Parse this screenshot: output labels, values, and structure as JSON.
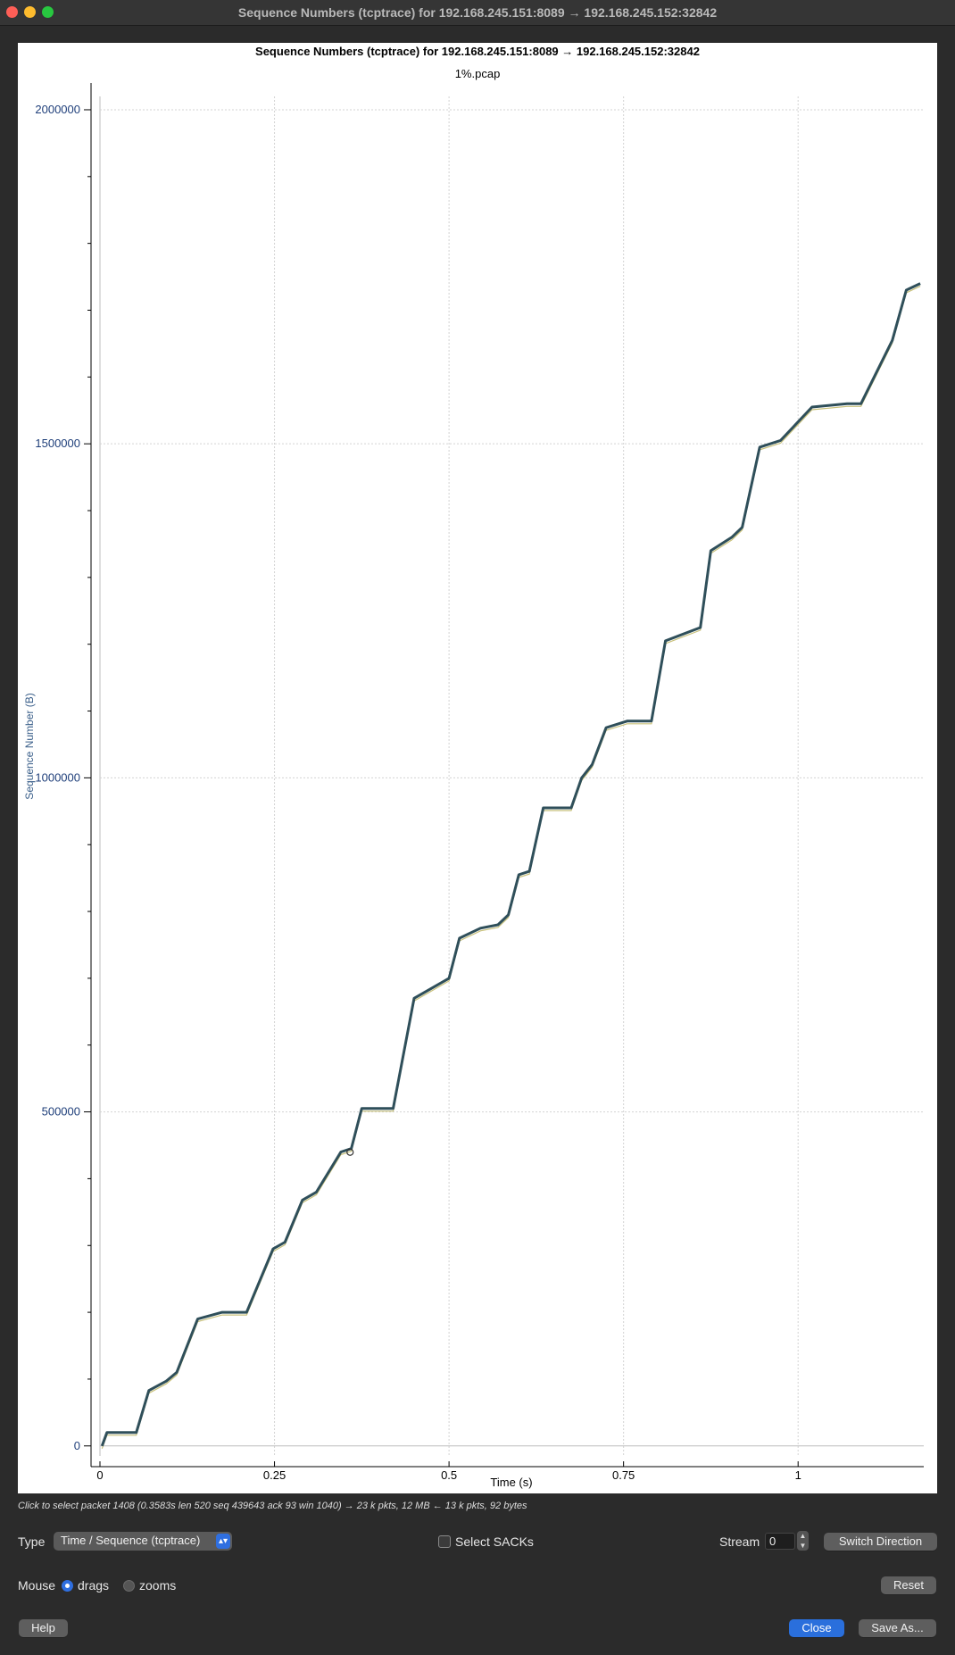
{
  "window": {
    "title": "Sequence Numbers (tcptrace) for 192.168.245.151:8089 → 192.168.245.152:32842"
  },
  "chart_data": {
    "type": "line",
    "title": "Sequence Numbers (tcptrace) for 192.168.245.151:8089 → 192.168.245.152:32842",
    "subtitle": "1%.pcap",
    "xlabel": "Time (s)",
    "ylabel": "Sequence Number (B)",
    "xlim": [
      0,
      1.18
    ],
    "ylim": [
      -15000,
      2020000
    ],
    "x_ticks": [
      {
        "value": 0,
        "label": "0"
      },
      {
        "value": 0.25,
        "label": "0.25"
      },
      {
        "value": 0.5,
        "label": "0.5"
      },
      {
        "value": 0.75,
        "label": "0.75"
      },
      {
        "value": 1,
        "label": "1"
      }
    ],
    "y_ticks": [
      {
        "value": 0,
        "label": "0"
      },
      {
        "value": 500000,
        "label": "500000"
      },
      {
        "value": 1000000,
        "label": "1000000"
      },
      {
        "value": 1500000,
        "label": "1500000"
      },
      {
        "value": 2000000,
        "label": "2000000"
      }
    ],
    "grid": true,
    "highlight_point": {
      "x": 0.3583,
      "y": 439643
    },
    "series": [
      {
        "color": "#2f4f5a",
        "x": [
          0.003,
          0.01,
          0.052,
          0.07,
          0.095,
          0.11,
          0.14,
          0.175,
          0.21,
          0.23,
          0.248,
          0.265,
          0.29,
          0.31,
          0.345,
          0.36,
          0.375,
          0.42,
          0.45,
          0.5,
          0.515,
          0.545,
          0.57,
          0.585,
          0.6,
          0.615,
          0.635,
          0.675,
          0.69,
          0.705,
          0.725,
          0.755,
          0.79,
          0.81,
          0.86,
          0.875,
          0.905,
          0.92,
          0.945,
          0.975,
          1.02,
          1.07,
          1.09,
          1.135,
          1.155,
          1.175
        ],
        "y": [
          0,
          20000,
          20000,
          83000,
          97000,
          110000,
          190000,
          200000,
          200000,
          250000,
          295000,
          305000,
          368000,
          380000,
          440000,
          445000,
          505000,
          505000,
          670000,
          700000,
          760000,
          775000,
          780000,
          795000,
          855000,
          860000,
          955000,
          955000,
          1000000,
          1020000,
          1075000,
          1085000,
          1085000,
          1205000,
          1225000,
          1340000,
          1360000,
          1375000,
          1495000,
          1505000,
          1555000,
          1560000,
          1560000,
          1655000,
          1730000,
          1740000
        ]
      }
    ]
  },
  "status": {
    "text": "Click to select packet 1408 (0.3583s len 520 seq 439643 ack 93 win 1040) → 23 k pkts, 12 MB ← 13 k pkts, 92 bytes"
  },
  "controls": {
    "type_label": "Type",
    "type_value": "Time / Sequence (tcptrace)",
    "select_sacks_label": "Select SACKs",
    "stream_label": "Stream",
    "stream_value": "0",
    "switch_direction_label": "Switch Direction",
    "mouse_label": "Mouse",
    "drags_label": "drags",
    "zooms_label": "zooms",
    "reset_label": "Reset",
    "help_label": "Help",
    "close_label": "Close",
    "save_as_label": "Save As..."
  }
}
